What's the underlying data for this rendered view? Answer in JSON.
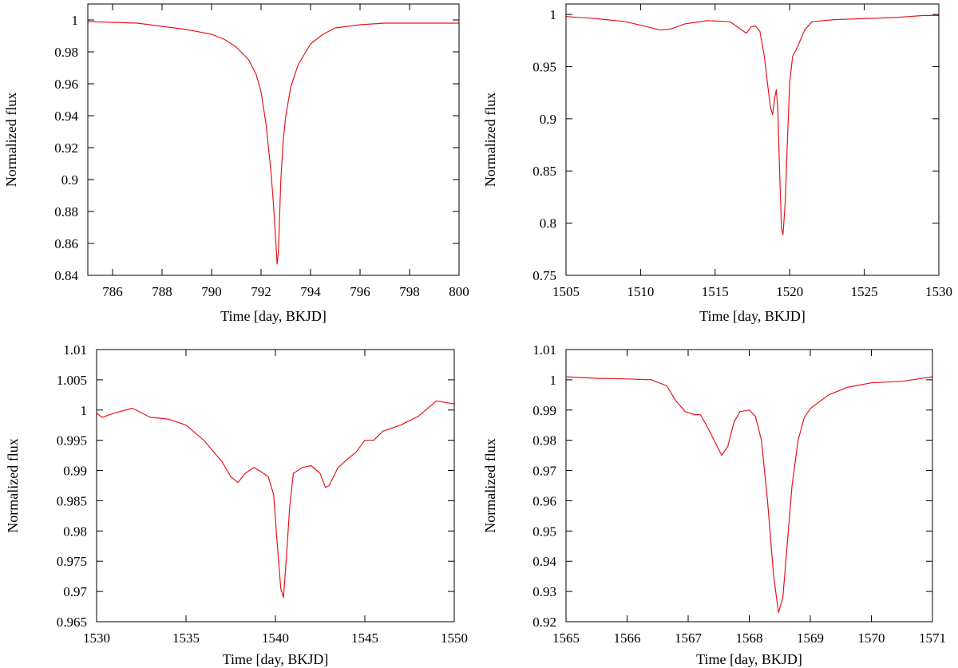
{
  "line_color": "#e8141b",
  "chart_data": [
    {
      "id": "panel-a",
      "type": "line",
      "title": "",
      "xlabel": "Time [day, BKJD]",
      "ylabel": "Normalized flux",
      "xlim": [
        785,
        800
      ],
      "ylim": [
        0.84,
        1.01
      ],
      "xticks": [
        786,
        788,
        790,
        792,
        794,
        796,
        798,
        800
      ],
      "yticks": [
        0.84,
        0.86,
        0.88,
        0.9,
        0.92,
        0.94,
        0.96,
        0.98,
        1
      ],
      "xtick_labels": [
        "786",
        "788",
        "790",
        "792",
        "794",
        "796",
        "798",
        "800"
      ],
      "ytick_labels": [
        "0.84",
        "0.86",
        "0.88",
        "0.9",
        "0.92",
        "0.94",
        "0.96",
        "0.98",
        "1"
      ],
      "series": [
        {
          "name": "flux",
          "x": [
            785.0,
            786.0,
            787.0,
            788.0,
            789.0,
            790.0,
            790.5,
            791.0,
            791.5,
            791.8,
            792.0,
            792.2,
            792.4,
            792.5,
            792.6,
            792.65,
            792.7,
            792.75,
            792.8,
            792.9,
            793.0,
            793.2,
            793.5,
            794.0,
            794.5,
            795.0,
            796.0,
            797.0,
            798.0,
            799.0,
            800.0
          ],
          "y": [
            0.999,
            0.9985,
            0.998,
            0.996,
            0.994,
            0.991,
            0.988,
            0.983,
            0.975,
            0.966,
            0.955,
            0.935,
            0.905,
            0.885,
            0.86,
            0.847,
            0.855,
            0.878,
            0.9,
            0.925,
            0.94,
            0.958,
            0.972,
            0.985,
            0.991,
            0.995,
            0.997,
            0.998,
            0.998,
            0.998,
            0.998
          ]
        }
      ]
    },
    {
      "id": "panel-b",
      "type": "line",
      "title": "",
      "xlabel": "Time [day, BKJD]",
      "ylabel": "Normalized flux",
      "xlim": [
        1505,
        1530
      ],
      "ylim": [
        0.75,
        1.01
      ],
      "xticks": [
        1505,
        1510,
        1515,
        1520,
        1525,
        1530
      ],
      "yticks": [
        0.75,
        0.8,
        0.85,
        0.9,
        0.95,
        1
      ],
      "xtick_labels": [
        "1505",
        "1510",
        "1515",
        "1520",
        "1525",
        "1530"
      ],
      "ytick_labels": [
        "0.75",
        "0.8",
        "0.85",
        "0.9",
        "0.95",
        "1"
      ],
      "series": [
        {
          "name": "flux",
          "x": [
            1505.0,
            1507.0,
            1509.0,
            1510.5,
            1511.3,
            1512.0,
            1513.0,
            1514.5,
            1516.0,
            1516.8,
            1517.1,
            1517.4,
            1517.7,
            1518.0,
            1518.3,
            1518.5,
            1518.7,
            1518.85,
            1519.0,
            1519.1,
            1519.2,
            1519.3,
            1519.45,
            1519.55,
            1519.7,
            1519.85,
            1520.0,
            1520.2,
            1520.5,
            1521.0,
            1521.5,
            1523.0,
            1525.0,
            1527.0,
            1529.0,
            1530.0
          ],
          "y": [
            0.998,
            0.996,
            0.993,
            0.988,
            0.985,
            0.986,
            0.991,
            0.994,
            0.993,
            0.985,
            0.982,
            0.988,
            0.989,
            0.984,
            0.96,
            0.935,
            0.912,
            0.904,
            0.92,
            0.928,
            0.91,
            0.86,
            0.795,
            0.789,
            0.82,
            0.88,
            0.935,
            0.96,
            0.968,
            0.985,
            0.993,
            0.995,
            0.996,
            0.997,
            0.999,
            0.999
          ]
        }
      ]
    },
    {
      "id": "panel-c",
      "type": "line",
      "title": "",
      "xlabel": "Time [day, BKJD]",
      "ylabel": "Normalized flux",
      "xlim": [
        1530,
        1550
      ],
      "ylim": [
        0.965,
        1.01
      ],
      "xticks": [
        1530,
        1535,
        1540,
        1545,
        1550
      ],
      "yticks": [
        0.965,
        0.97,
        0.975,
        0.98,
        0.985,
        0.99,
        0.995,
        1,
        1.005,
        1.01
      ],
      "xtick_labels": [
        "1530",
        "1535",
        "1540",
        "1545",
        "1550"
      ],
      "ytick_labels": [
        "0.965",
        "0.97",
        "0.975",
        "0.98",
        "0.985",
        "0.99",
        "0.995",
        "1",
        "1.005",
        "1.01"
      ],
      "series": [
        {
          "name": "flux",
          "x": [
            1530.0,
            1530.3,
            1531.0,
            1532.0,
            1533.0,
            1534.0,
            1535.0,
            1536.0,
            1537.0,
            1537.5,
            1537.9,
            1538.3,
            1538.8,
            1539.2,
            1539.6,
            1539.9,
            1540.1,
            1540.3,
            1540.45,
            1540.6,
            1540.8,
            1541.0,
            1541.5,
            1542.0,
            1542.5,
            1542.8,
            1543.0,
            1543.5,
            1544.0,
            1544.5,
            1545.0,
            1545.5,
            1546.0,
            1547.0,
            1548.0,
            1549.0,
            1550.0
          ],
          "y": [
            0.9995,
            0.9988,
            0.9995,
            1.0003,
            0.9988,
            0.9985,
            0.9975,
            0.995,
            0.9915,
            0.989,
            0.988,
            0.9895,
            0.9905,
            0.9898,
            0.989,
            0.986,
            0.978,
            0.9705,
            0.969,
            0.975,
            0.984,
            0.9895,
            0.9905,
            0.9908,
            0.9895,
            0.9872,
            0.9875,
            0.9905,
            0.9918,
            0.993,
            0.995,
            0.995,
            0.9965,
            0.9975,
            0.999,
            1.0015,
            1.001
          ]
        }
      ]
    },
    {
      "id": "panel-d",
      "type": "line",
      "title": "",
      "xlabel": "Time [day, BKJD]",
      "ylabel": "Normalized flux",
      "xlim": [
        1565,
        1571
      ],
      "ylim": [
        0.92,
        1.01
      ],
      "xticks": [
        1565,
        1566,
        1567,
        1568,
        1569,
        1570,
        1571
      ],
      "yticks": [
        0.92,
        0.93,
        0.94,
        0.95,
        0.96,
        0.97,
        0.98,
        0.99,
        1,
        1.01
      ],
      "xtick_labels": [
        "1565",
        "1566",
        "1567",
        "1568",
        "1569",
        "1570",
        "1571"
      ],
      "ytick_labels": [
        "0.92",
        "0.93",
        "0.94",
        "0.95",
        "0.96",
        "0.97",
        "0.98",
        "0.99",
        "1",
        "1.01"
      ],
      "series": [
        {
          "name": "flux",
          "x": [
            1565.0,
            1565.5,
            1566.0,
            1566.4,
            1566.65,
            1566.8,
            1566.95,
            1567.1,
            1567.2,
            1567.3,
            1567.45,
            1567.55,
            1567.65,
            1567.75,
            1567.85,
            1568.0,
            1568.1,
            1568.2,
            1568.3,
            1568.4,
            1568.48,
            1568.55,
            1568.62,
            1568.7,
            1568.8,
            1568.9,
            1569.0,
            1569.3,
            1569.6,
            1570.0,
            1570.5,
            1571.0
          ],
          "y": [
            1.001,
            1.0005,
            1.0003,
            1.0,
            0.998,
            0.993,
            0.9895,
            0.9885,
            0.9885,
            0.985,
            0.979,
            0.975,
            0.978,
            0.986,
            0.9895,
            0.99,
            0.988,
            0.98,
            0.96,
            0.935,
            0.923,
            0.928,
            0.945,
            0.965,
            0.98,
            0.9875,
            0.9905,
            0.995,
            0.9975,
            0.999,
            0.9995,
            1.001
          ]
        }
      ]
    }
  ]
}
